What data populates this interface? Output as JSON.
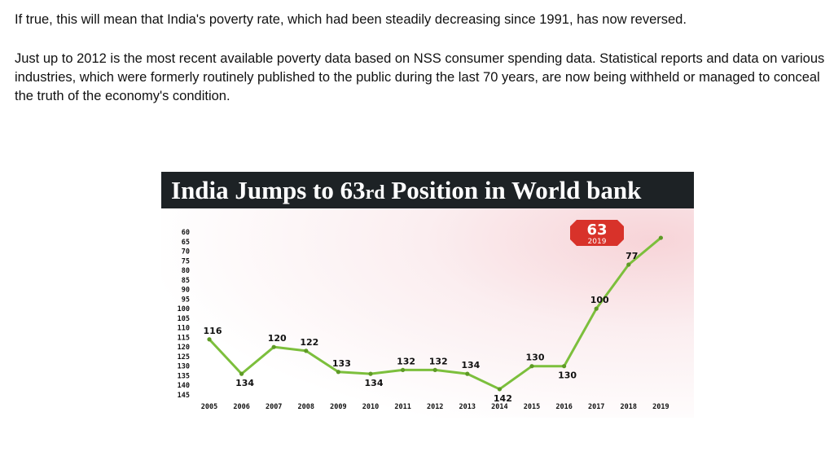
{
  "text": {
    "paragraph_1": "If true, this will mean that India's poverty rate, which had been steadily decreasing since 1991, has now reversed.",
    "paragraph_2": "Just up to 2012 is the most recent available poverty data based on NSS consumer spending data. Statistical reports and data on various industries, which were formerly routinely published to the public during the last 70 years, are now being withheld or managed to conceal the truth of the economy's condition."
  },
  "chart_data": {
    "type": "line",
    "title_main": "India Jumps to 63",
    "title_suffix": "rd",
    "title_end": " Position in World bank",
    "badge": {
      "value": "63",
      "year": "2019"
    },
    "x": [
      "2005",
      "2006",
      "2007",
      "2008",
      "2009",
      "2010",
      "2011",
      "2012",
      "2013",
      "2014",
      "2015",
      "2016",
      "2017",
      "2018",
      "2019"
    ],
    "values": [
      116,
      134,
      120,
      122,
      133,
      134,
      132,
      132,
      134,
      142,
      130,
      130,
      100,
      77,
      63
    ],
    "point_labels": [
      "116",
      "134",
      "120",
      "122",
      "133",
      "134",
      "132",
      "132",
      "134",
      "142",
      "130",
      "130",
      "100",
      "77",
      ""
    ],
    "y_ticks": [
      "60",
      "65",
      "70",
      "75",
      "80",
      "85",
      "90",
      "95",
      "100",
      "105",
      "110",
      "115",
      "120",
      "125",
      "130",
      "135",
      "140",
      "145"
    ],
    "ylim": [
      60,
      145
    ],
    "y_inverted": true,
    "colors": {
      "line": "#7cbf3c",
      "marker": "#5e9a26",
      "badge": "#d8322a",
      "banner": "#1d2225",
      "text": "#111111"
    }
  }
}
